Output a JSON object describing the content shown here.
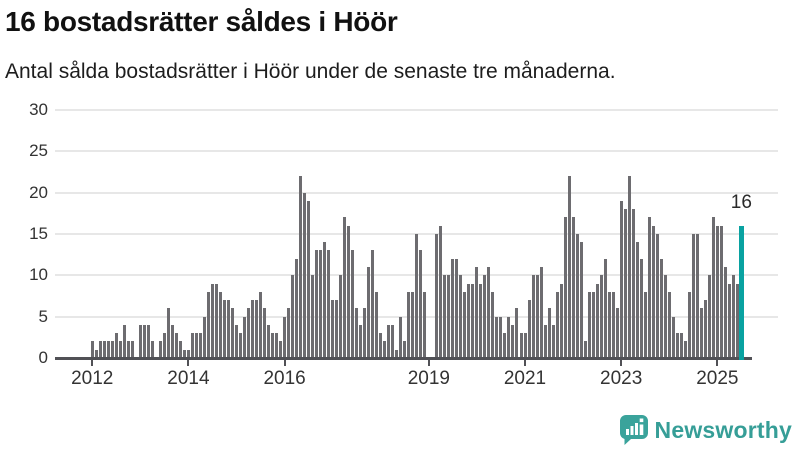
{
  "header": {
    "title": "16 bostadsrätter såldes i Höör",
    "subtitle": "Antal sålda bostadsrätter i Höör under de senaste tre månaderna."
  },
  "chart_data": {
    "type": "bar",
    "title": "16 bostadsrätter såldes i Höör",
    "subtitle": "Antal sålda bostadsrätter i Höör under de senaste tre månaderna.",
    "frequency": "monthly",
    "start_month": "2011-05",
    "values": [
      0,
      0,
      0,
      0,
      0,
      0,
      0,
      0,
      2,
      1,
      2,
      2,
      2,
      2,
      3,
      2,
      4,
      2,
      2,
      0,
      4,
      4,
      4,
      2,
      0,
      2,
      3,
      6,
      4,
      3,
      2,
      1,
      1,
      3,
      3,
      3,
      5,
      8,
      9,
      9,
      8,
      7,
      7,
      6,
      4,
      3,
      5,
      6,
      7,
      7,
      8,
      6,
      4,
      3,
      3,
      2,
      5,
      6,
      10,
      12,
      22,
      20,
      19,
      10,
      13,
      13,
      14,
      13,
      7,
      7,
      10,
      17,
      16,
      13,
      6,
      4,
      6,
      11,
      13,
      8,
      3,
      2,
      4,
      4,
      1,
      5,
      2,
      8,
      8,
      15,
      13,
      8,
      0,
      0,
      15,
      16,
      10,
      10,
      12,
      12,
      10,
      8,
      9,
      9,
      11,
      9,
      10,
      11,
      8,
      5,
      5,
      3,
      5,
      4,
      6,
      3,
      3,
      7,
      10,
      10,
      11,
      4,
      6,
      4,
      8,
      9,
      17,
      22,
      17,
      15,
      14,
      2,
      8,
      8,
      9,
      10,
      12,
      8,
      8,
      6,
      19,
      18,
      22,
      18,
      14,
      12,
      8,
      17,
      16,
      15,
      12,
      10,
      8,
      5,
      3,
      3,
      2,
      8,
      15,
      15,
      6,
      7,
      10,
      17,
      16,
      16,
      11,
      9,
      10,
      9,
      16
    ],
    "highlight_index": 170,
    "highlight_value": 16,
    "highlight_value_label": "16",
    "bar_color": "#6d6c70",
    "highlight_color": "#09a2a1",
    "ylim": [
      0,
      30
    ],
    "yticks": [
      0,
      5,
      10,
      15,
      20,
      25,
      30
    ],
    "xtick_years": [
      2012,
      2014,
      2016,
      2019,
      2021,
      2023,
      2025
    ],
    "grid": true,
    "legend_position": "none"
  },
  "branding": {
    "logo_text": "Newsworthy",
    "logo_color": "#369e97"
  }
}
